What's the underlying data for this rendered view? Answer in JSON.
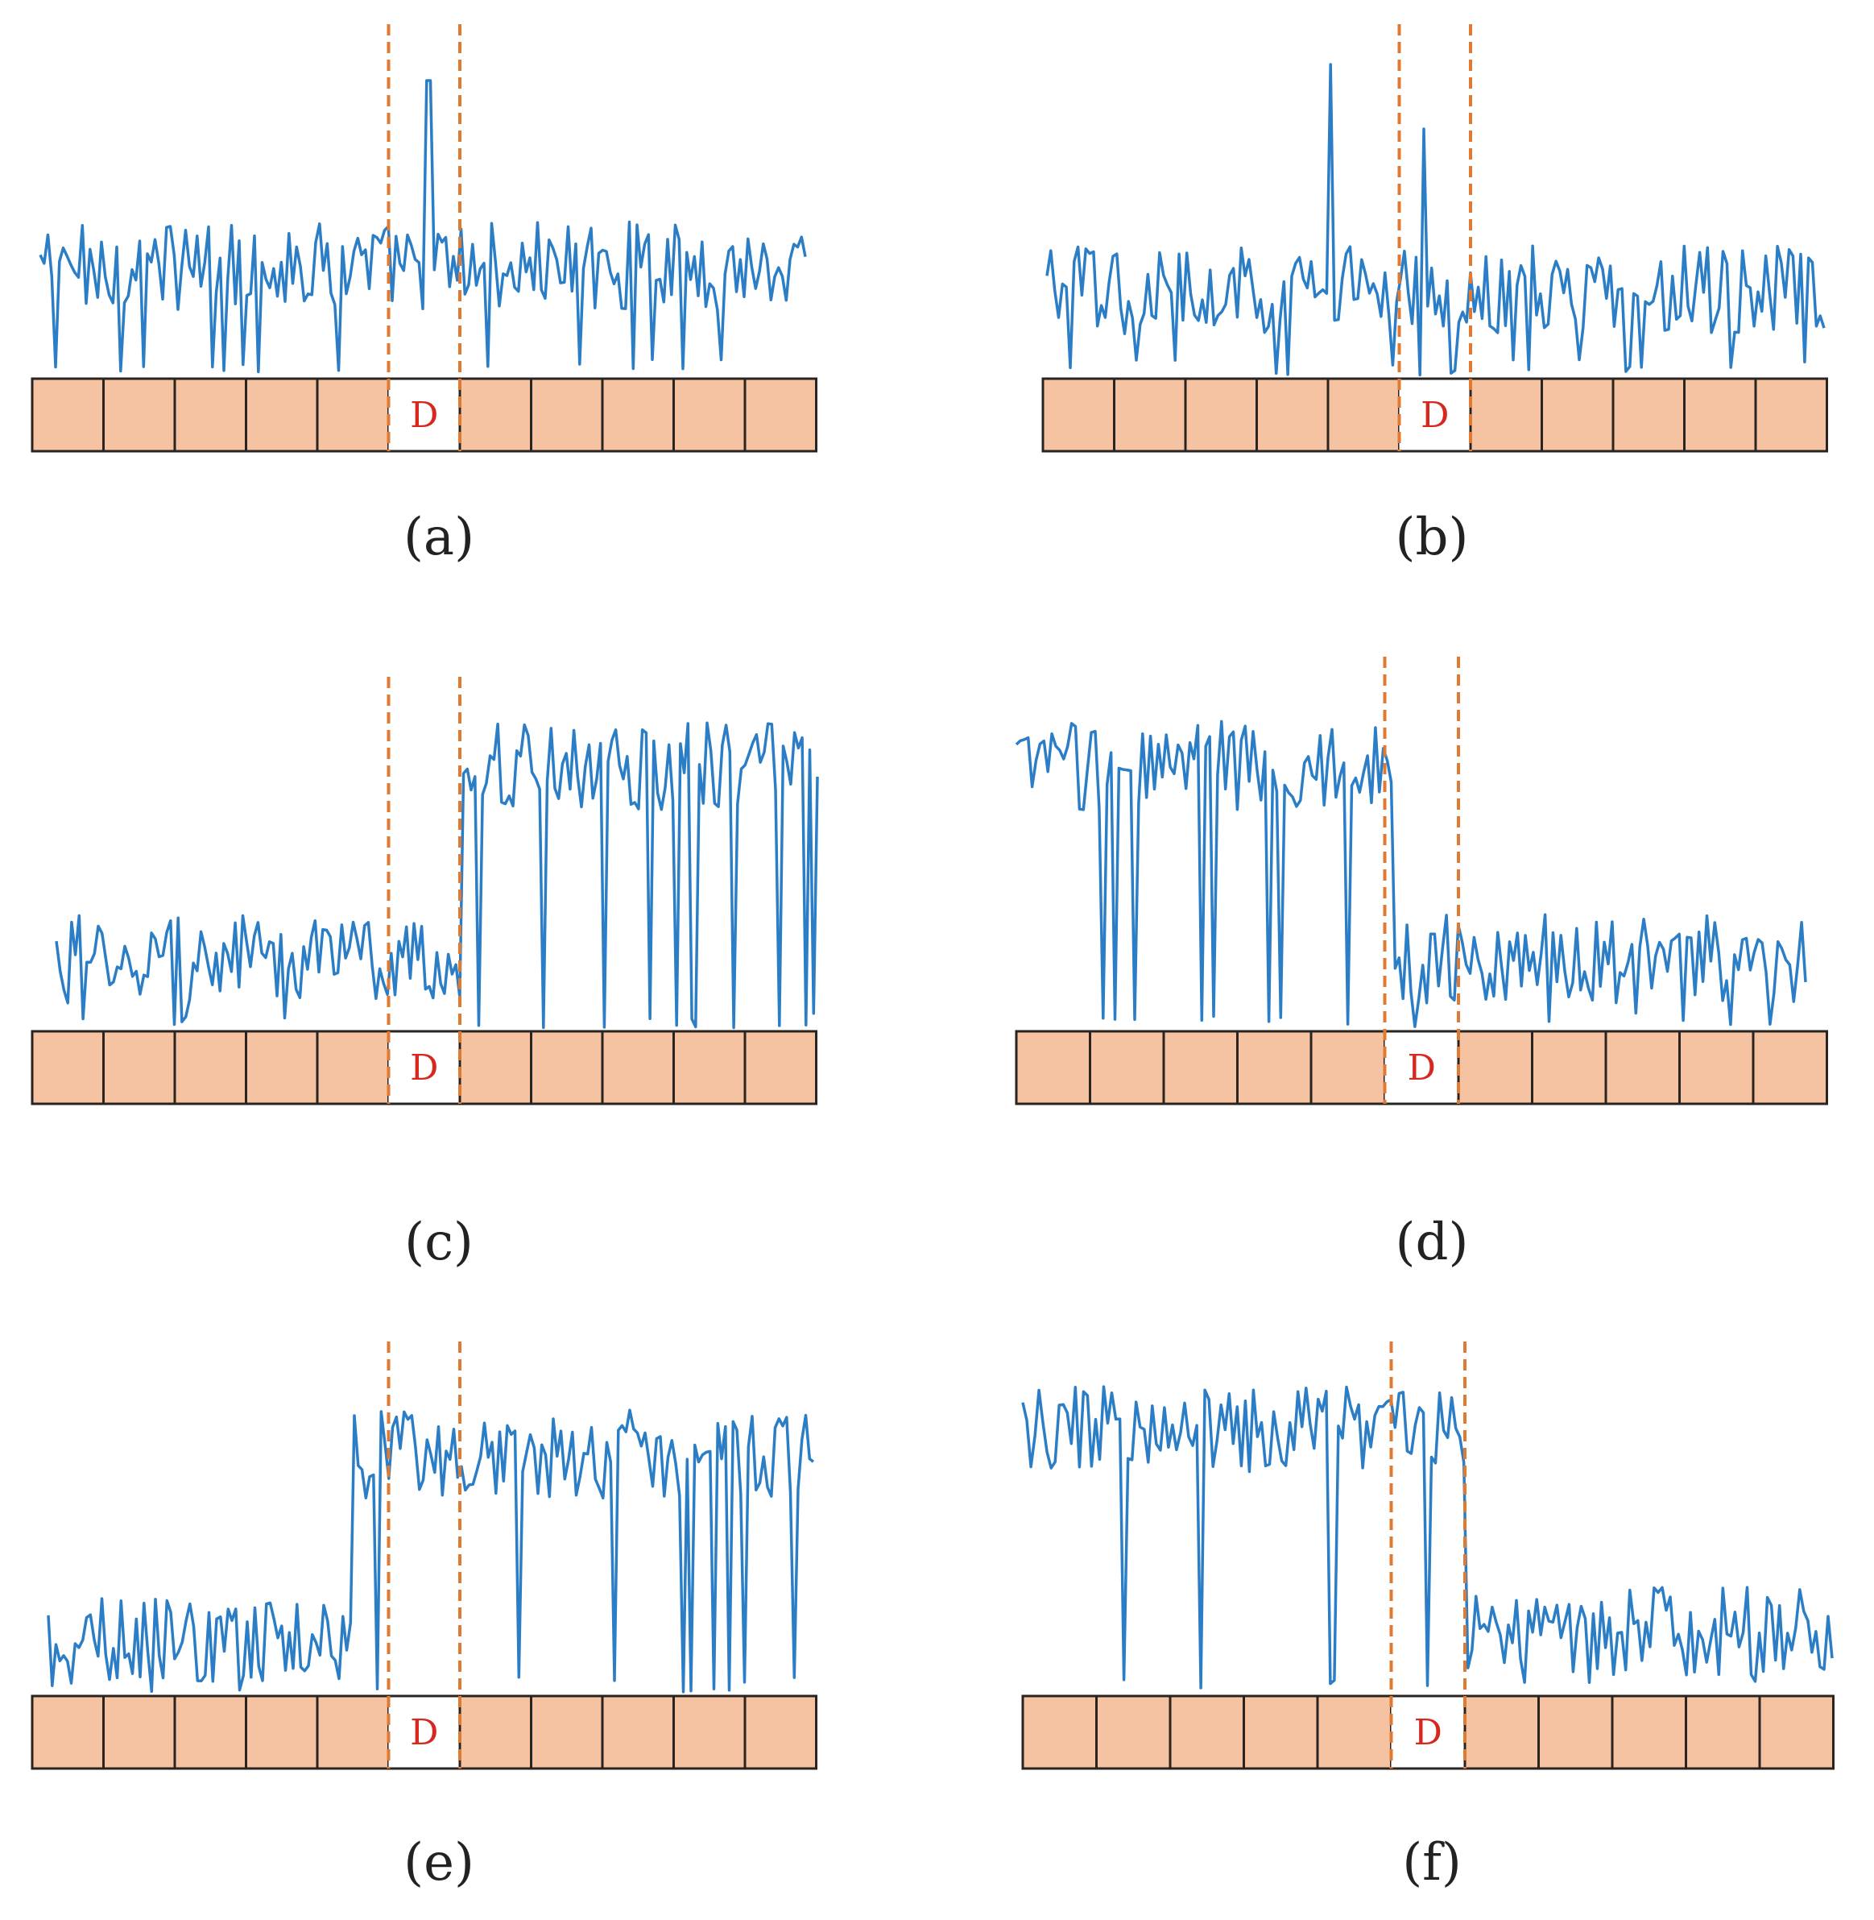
{
  "colors": {
    "signal": "#2b7ec6",
    "cell_fill": "#f5c3a1",
    "cell_border": "#2a2420",
    "divider": "#e07a32",
    "d_cell_fill": "#ffffff",
    "d_label": "#d6281e"
  },
  "panels": [
    {
      "id": "a",
      "caption": "(a)",
      "d_label": "D",
      "cells": 11,
      "d_index": 5,
      "pattern": "spike-inside-window"
    },
    {
      "id": "b",
      "caption": "(b)",
      "d_label": "D",
      "cells": 11,
      "d_index": 5,
      "pattern": "spikes-near-window"
    },
    {
      "id": "c",
      "caption": "(c)",
      "d_label": "D",
      "cells": 11,
      "d_index": 5,
      "pattern": "step-up-after-window"
    },
    {
      "id": "d",
      "caption": "(d)",
      "d_label": "D",
      "cells": 11,
      "d_index": 5,
      "pattern": "step-down-at-window"
    },
    {
      "id": "e",
      "caption": "(e)",
      "d_label": "D",
      "cells": 11,
      "d_index": 5,
      "pattern": "step-up-before-window"
    },
    {
      "id": "f",
      "caption": "(f)",
      "d_label": "D",
      "cells": 11,
      "d_index": 5,
      "pattern": "step-down-after-window"
    }
  ]
}
